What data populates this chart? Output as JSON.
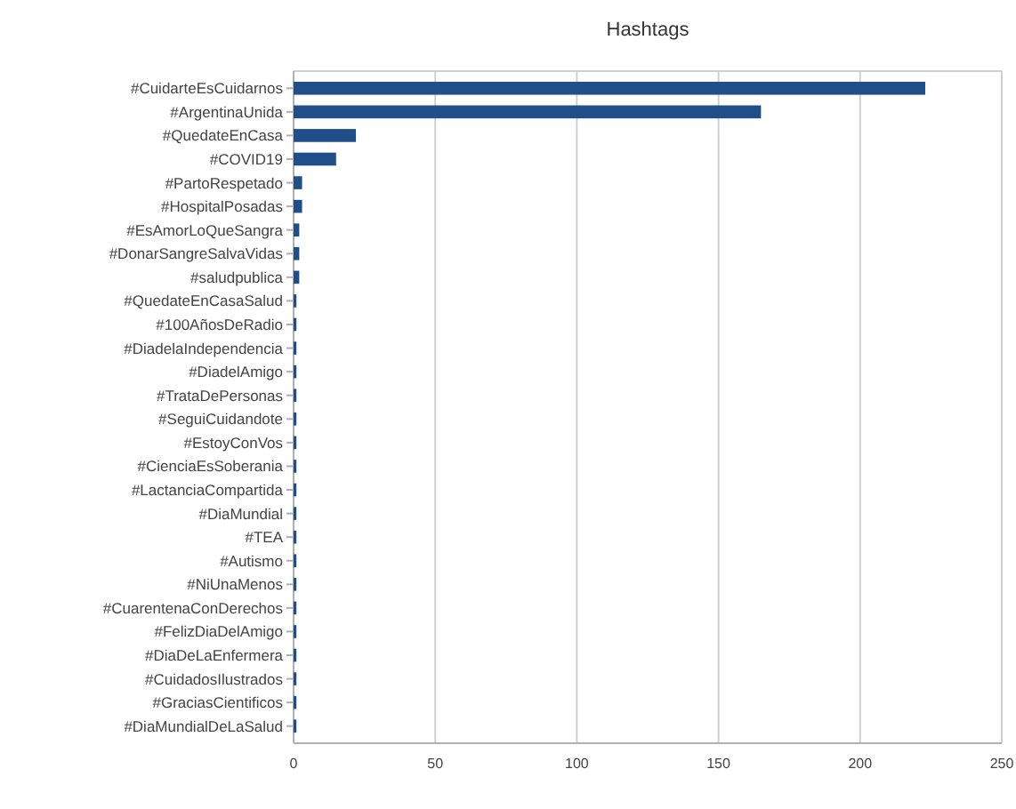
{
  "chart_data": {
    "type": "bar",
    "orientation": "horizontal",
    "title": "Hashtags",
    "categories": [
      "#CuidarteEsCuidarnos",
      "#ArgentinaUnida",
      "#QuedateEnCasa",
      "#COVID19",
      "#PartoRespetado",
      "#HospitalPosadas",
      "#EsAmorLoQueSangra",
      "#DonarSangreSalvaVidas",
      "#saludpublica",
      "#QuedateEnCasaSalud",
      "#100AñosDeRadio",
      "#DiadelaIndependencia",
      "#DiadelAmigo",
      "#TrataDePersonas",
      "#SeguiCuidandote",
      "#EstoyConVos",
      "#CienciaEsSoberania",
      "#LactanciaCompartida",
      "#DiaMundial",
      "#TEA",
      "#Autismo",
      "#NiUnaMenos",
      "#CuarentenaConDerechos",
      "#FelizDiaDelAmigo",
      "#DiaDeLaEnfermera",
      "#CuidadosIlustrados",
      "#GraciasCientificos",
      "#DiaMundialDeLaSalud"
    ],
    "values": [
      223,
      165,
      22,
      15,
      3,
      3,
      2,
      2,
      2,
      1,
      1,
      1,
      1,
      1,
      1,
      1,
      1,
      1,
      1,
      1,
      1,
      1,
      1,
      1,
      1,
      1,
      1,
      1
    ],
    "color": "#1f4e89",
    "xlim": [
      0,
      250
    ],
    "xticks": [
      0,
      50,
      100,
      150,
      200,
      250
    ],
    "grid": "x"
  }
}
